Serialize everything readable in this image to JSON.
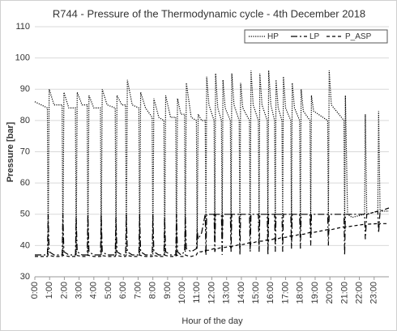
{
  "chart_data": {
    "type": "line",
    "title": "R744 - Pressure of the Thermodynamic cycle - 4th December 2018",
    "x_label": "Hour of the day",
    "y_label": "Pressure [bar]",
    "xlim": [
      0,
      24
    ],
    "ylim": [
      30,
      110
    ],
    "yticks": [
      30,
      40,
      50,
      60,
      70,
      80,
      90,
      100,
      110
    ],
    "xticks": [
      {
        "value": 0,
        "label": "0:00"
      },
      {
        "value": 1,
        "label": "1:00"
      },
      {
        "value": 2,
        "label": "2:00"
      },
      {
        "value": 3,
        "label": "3:00"
      },
      {
        "value": 4,
        "label": "4:00"
      },
      {
        "value": 5,
        "label": "5:00"
      },
      {
        "value": 6,
        "label": "6:00"
      },
      {
        "value": 7,
        "label": "7:00"
      },
      {
        "value": 8,
        "label": "8:00"
      },
      {
        "value": 9,
        "label": "9:00"
      },
      {
        "value": 10,
        "label": "10:00"
      },
      {
        "value": 11,
        "label": "11:00"
      },
      {
        "value": 12,
        "label": "12:00"
      },
      {
        "value": 13,
        "label": "13:00"
      },
      {
        "value": 14,
        "label": "14:00"
      },
      {
        "value": 15,
        "label": "15:00"
      },
      {
        "value": 16,
        "label": "16:00"
      },
      {
        "value": 17,
        "label": "17:00"
      },
      {
        "value": 18,
        "label": "18:00"
      },
      {
        "value": 19,
        "label": "19:00"
      },
      {
        "value": 20,
        "label": "20:00"
      },
      {
        "value": 21,
        "label": "21:00"
      },
      {
        "value": 22,
        "label": "22:00"
      },
      {
        "value": 23,
        "label": "23:00"
      }
    ],
    "grid": true,
    "legend": "top-right",
    "x": [
      0,
      0.85,
      0.9,
      0.97,
      1.3,
      1.85,
      1.9,
      1.97,
      2.3,
      2.75,
      2.8,
      2.87,
      3.2,
      3.55,
      3.6,
      3.67,
      4.0,
      4.45,
      4.5,
      4.57,
      4.9,
      5.45,
      5.5,
      5.57,
      5.9,
      6.15,
      6.2,
      6.27,
      6.6,
      7.05,
      7.1,
      7.17,
      7.5,
      7.95,
      8.0,
      8.07,
      8.4,
      8.75,
      8.8,
      8.87,
      9.2,
      9.55,
      9.6,
      9.67,
      9.9,
      10.15,
      10.2,
      10.27,
      10.6,
      10.95,
      11.0,
      11.07,
      11.3,
      11.55,
      11.6,
      11.65,
      11.8,
      12.15,
      12.2,
      12.25,
      12.4,
      12.65,
      12.7,
      12.75,
      12.9,
      13.25,
      13.3,
      13.35,
      13.5,
      13.85,
      13.9,
      13.95,
      14.1,
      14.55,
      14.6,
      14.65,
      14.8,
      15.15,
      15.2,
      15.25,
      15.4,
      15.75,
      15.8,
      15.85,
      16.0,
      16.25,
      16.3,
      16.35,
      16.5,
      16.75,
      16.8,
      16.85,
      17.0,
      17.35,
      17.4,
      17.45,
      17.6,
      17.95,
      18.0,
      18.05,
      18.2,
      18.65,
      18.7,
      18.75,
      18.9,
      19.85,
      19.9,
      19.95,
      20.1,
      20.95,
      21.0,
      21.05,
      21.2,
      21.5,
      22.35,
      22.4,
      22.5,
      23.25,
      23.3,
      23.4,
      24
    ],
    "series": [
      {
        "name": "HP",
        "color": "#000000",
        "dash": "dotted",
        "values": [
          86,
          84,
          37,
          90,
          85,
          85,
          37,
          89,
          84,
          84,
          37,
          89,
          85,
          85,
          37,
          88,
          84,
          84,
          37,
          90,
          85,
          84,
          37,
          88,
          85,
          85,
          37,
          93,
          85,
          84,
          37,
          89,
          84,
          81,
          37,
          87,
          81,
          80,
          37,
          88,
          81,
          81,
          37,
          87,
          82,
          82,
          38,
          92,
          81,
          80,
          39,
          82,
          80,
          80,
          42,
          94,
          85,
          80,
          43,
          95,
          84,
          80,
          42,
          93,
          84,
          80,
          44,
          95,
          85,
          80,
          43,
          92,
          84,
          80,
          44,
          96,
          85,
          80,
          45,
          95,
          85,
          80,
          44,
          96,
          85,
          80,
          45,
          93,
          84,
          80,
          45,
          94,
          84,
          80,
          46,
          92,
          84,
          80,
          45,
          90,
          83,
          80,
          46,
          88,
          83,
          80,
          47,
          96,
          85,
          80,
          47,
          88,
          50,
          49,
          50,
          82,
          50,
          51,
          83,
          51,
          51
        ]
      },
      {
        "name": "LP",
        "color": "#000000",
        "dash": "dashdot",
        "values": [
          37,
          37,
          50,
          38,
          37,
          37,
          50,
          38,
          37,
          37,
          49,
          38,
          37,
          37,
          50,
          38,
          37,
          37,
          50,
          38,
          37,
          37,
          49,
          38,
          37,
          37,
          50,
          38,
          37,
          37,
          50,
          38,
          37,
          37,
          50,
          38,
          37,
          37,
          49,
          38,
          37,
          37,
          50,
          38,
          37,
          38,
          50,
          39,
          38,
          39,
          45,
          42,
          44,
          50,
          37,
          50,
          50,
          50,
          38,
          50,
          50,
          50,
          37,
          50,
          50,
          50,
          38,
          50,
          50,
          50,
          37,
          50,
          50,
          50,
          38,
          50,
          50,
          50,
          38,
          50,
          50,
          50,
          37,
          50,
          50,
          50,
          38,
          50,
          50,
          50,
          38,
          50,
          50,
          50,
          39,
          50,
          50,
          50,
          39,
          50,
          50,
          50,
          40,
          50,
          50,
          50,
          40,
          50,
          50,
          50,
          37,
          50,
          50,
          50,
          50,
          42,
          50,
          51,
          44,
          51,
          52
        ]
      },
      {
        "name": "P_ASP",
        "color": "#000000",
        "dash": "dashed",
        "values": [
          36.5,
          36.5,
          37,
          36.8,
          36.5,
          36.5,
          37,
          36.8,
          36.5,
          36.5,
          37,
          36.8,
          36.5,
          36.5,
          37,
          36.8,
          36.5,
          36.5,
          37,
          36.8,
          36.5,
          36.5,
          37,
          36.8,
          36.5,
          36.5,
          37,
          36.8,
          36.5,
          36.5,
          37,
          36.8,
          36.5,
          36.5,
          37,
          36.8,
          36.5,
          36.5,
          37,
          36.8,
          36.5,
          36.5,
          37,
          36.8,
          36.5,
          36.5,
          37,
          36.8,
          36.5,
          37,
          37.5,
          38,
          38,
          38.5,
          37.5,
          38.5,
          38.5,
          39,
          38,
          39,
          39,
          39.4,
          38.4,
          39.4,
          39.4,
          39.8,
          38.8,
          39.8,
          39.8,
          40.3,
          39.3,
          40.3,
          40.3,
          40.9,
          39.9,
          40.9,
          40.9,
          41.4,
          40.4,
          41.4,
          41.4,
          41.8,
          40.8,
          41.8,
          41.8,
          42.2,
          41.2,
          42.2,
          42.2,
          42.6,
          41.6,
          42.6,
          42.6,
          43.1,
          42.1,
          43.1,
          43.1,
          43.6,
          42.6,
          43.6,
          43.6,
          44.2,
          43.2,
          44.2,
          44.2,
          45.1,
          44.1,
          45.1,
          45.1,
          46,
          45,
          46,
          46,
          46.2,
          46.8,
          46,
          46.8,
          47,
          46.5,
          47,
          47
        ]
      }
    ]
  }
}
